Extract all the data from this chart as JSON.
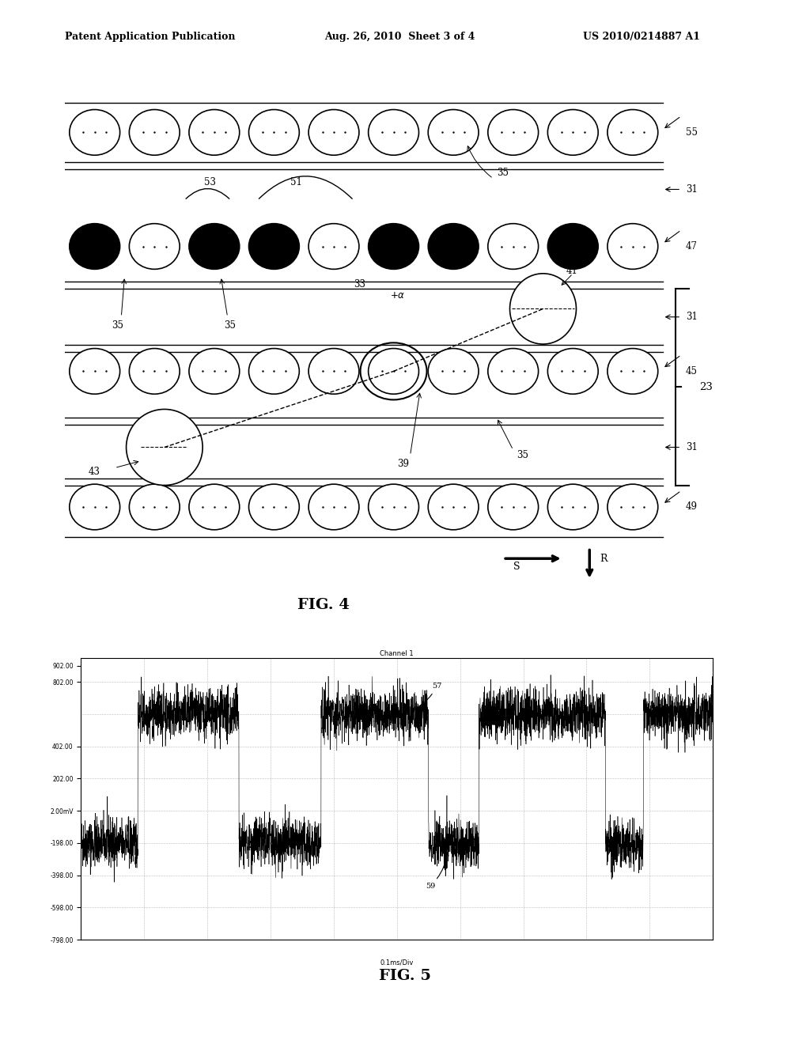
{
  "bg_color": "#ffffff",
  "header_left": "Patent Application Publication",
  "header_mid": "Aug. 26, 2010  Sheet 3 of 4",
  "header_right": "US 2010/0214887 A1",
  "fig4_label": "FIG. 4",
  "fig5_label": "FIG. 5",
  "oscilloscope_title": "Channel 1",
  "oscilloscope_xlabel": "0.1ms/Div",
  "osc_yticks": [
    "902.00",
    "802.00",
    "402.00",
    "202.00",
    "2.00mV",
    "-198.00",
    "-398.00",
    "-598.00",
    "-798.00"
  ],
  "osc_yvalues": [
    900,
    800,
    400,
    200,
    0,
    -200,
    -400,
    -600,
    -800
  ]
}
